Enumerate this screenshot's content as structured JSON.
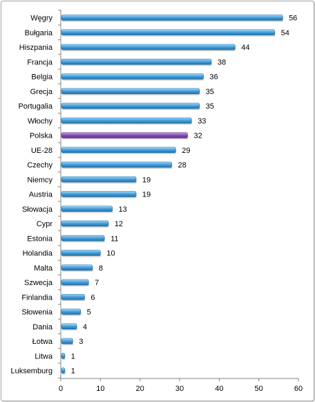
{
  "chart_data": {
    "type": "bar",
    "orientation": "horizontal",
    "title": "",
    "xlabel": "",
    "ylabel": "",
    "categories": [
      "Węgry",
      "Bułgaria",
      "Hiszpania",
      "Francja",
      "Belgia",
      "Grecja",
      "Portugalia",
      "Włochy",
      "Polska",
      "UE-28",
      "Czechy",
      "Niemcy",
      "Austria",
      "Słowacja",
      "Cypr",
      "Estonia",
      "Holandia",
      "Malta",
      "Szwecja",
      "Finlandia",
      "Słowenia",
      "Dania",
      "Łotwa",
      "Litwa",
      "Luksemburg"
    ],
    "values": [
      56,
      54,
      44,
      38,
      36,
      35,
      35,
      33,
      32,
      29,
      28,
      19,
      19,
      13,
      12,
      11,
      10,
      8,
      7,
      6,
      5,
      4,
      3,
      1,
      1
    ],
    "highlight_category": "Polska",
    "xlim": [
      0,
      60
    ],
    "xticks": [
      0,
      10,
      20,
      30,
      40,
      50,
      60
    ],
    "grid": false,
    "legend": "none",
    "colors": {
      "bar": "#4aa3df",
      "bar_light": "#a9d8f5",
      "bar_dark": "#1f6fa8",
      "highlight": "#8a52b4",
      "highlight_light": "#c7a3e0",
      "highlight_dark": "#5e2f85",
      "axis": "#808080"
    }
  }
}
